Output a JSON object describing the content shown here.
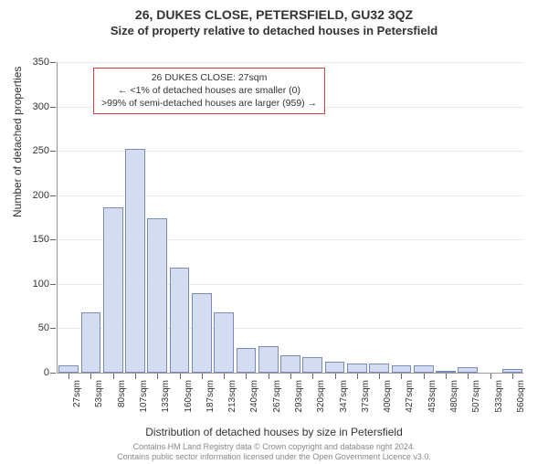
{
  "title_main": "26, DUKES CLOSE, PETERSFIELD, GU32 3QZ",
  "title_sub": "Size of property relative to detached houses in Petersfield",
  "y_axis_title": "Number of detached properties",
  "x_axis_title": "Distribution of detached houses by size in Petersfield",
  "ylim": [
    0,
    350
  ],
  "ytick_step": 50,
  "y_ticks": [
    0,
    50,
    100,
    150,
    200,
    250,
    300,
    350
  ],
  "bar_fill": "#d3dcf0",
  "bar_border": "#7a8bb8",
  "grid_color": "#e8e8e8",
  "annotation_border": "#d04040",
  "categories": [
    "27sqm",
    "53sqm",
    "80sqm",
    "107sqm",
    "133sqm",
    "160sqm",
    "187sqm",
    "213sqm",
    "240sqm",
    "267sqm",
    "293sqm",
    "320sqm",
    "347sqm",
    "373sqm",
    "400sqm",
    "427sqm",
    "453sqm",
    "480sqm",
    "507sqm",
    "533sqm",
    "560sqm"
  ],
  "values": [
    8,
    68,
    186,
    252,
    174,
    118,
    90,
    68,
    28,
    30,
    20,
    18,
    12,
    10,
    10,
    8,
    8,
    2,
    6,
    0,
    4
  ],
  "annotation": {
    "line1": "26 DUKES CLOSE: 27sqm",
    "line2": "← <1% of detached houses are smaller (0)",
    "line3": ">99% of semi-detached houses are larger (959) →"
  },
  "footer_line1": "Contains HM Land Registry data © Crown copyright and database right 2024.",
  "footer_line2": "Contains public sector information licensed under the Open Government Licence v3.0."
}
